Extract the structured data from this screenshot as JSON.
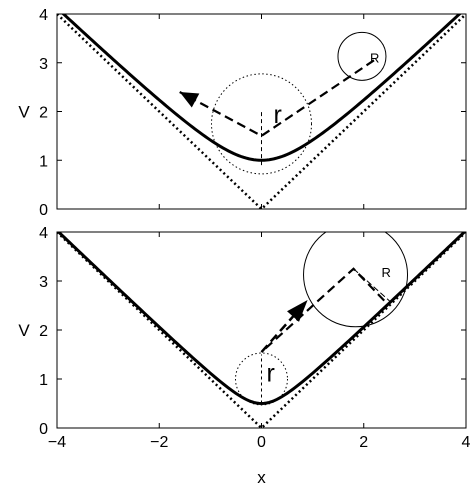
{
  "chart_data": [
    {
      "type": "line",
      "panel": "top",
      "xlim": [
        -4,
        4
      ],
      "ylim": [
        0,
        4
      ],
      "ylabel": "V",
      "xlabel": "",
      "x_ticks": [],
      "y_ticks": [
        "0",
        "1",
        "2",
        "3",
        "4"
      ],
      "series": [
        {
          "style": "solid",
          "equation": "V = sqrt(x^2 + 1)",
          "x": [
            -4,
            -3,
            -2,
            -1,
            0,
            1,
            2,
            3,
            4
          ],
          "values": [
            4.12,
            3.16,
            2.24,
            1.41,
            1.0,
            1.41,
            2.24,
            3.16,
            4.12
          ]
        },
        {
          "style": "dotted",
          "equation": "V = |x|",
          "x": [
            -4,
            0,
            4
          ],
          "values": [
            4,
            0,
            4
          ]
        },
        {
          "style": "dashed-path",
          "x": [
            2.2,
            0.0,
            -1.6
          ],
          "values": [
            3.05,
            1.5,
            2.4
          ]
        }
      ],
      "annotations": {
        "small_label": "r",
        "big_label": "R"
      }
    },
    {
      "type": "line",
      "panel": "bottom",
      "xlim": [
        -4,
        4
      ],
      "ylim": [
        0,
        4
      ],
      "ylabel": "V",
      "xlabel": "x",
      "x_ticks": [
        "−4",
        "−2",
        "0",
        "2",
        "4"
      ],
      "y_ticks": [
        "0",
        "1",
        "2",
        "3",
        "4"
      ],
      "series": [
        {
          "style": "solid",
          "equation": "V = sqrt(x^2 + 0.25)",
          "x": [
            -4,
            -3,
            -2,
            -1,
            0,
            1,
            2,
            3,
            4
          ],
          "values": [
            4.03,
            3.04,
            2.06,
            1.12,
            0.5,
            1.12,
            2.06,
            3.04,
            4.03
          ]
        },
        {
          "style": "dotted",
          "equation": "V = |x|",
          "x": [
            -4,
            0,
            4
          ],
          "values": [
            4,
            0,
            4
          ]
        },
        {
          "style": "dashed-path",
          "x": [
            2.4,
            1.8,
            0.0
          ],
          "values": [
            2.6,
            3.25,
            1.55
          ]
        },
        {
          "style": "dashed-arrow",
          "x": [
            0.0,
            0.85
          ],
          "values": [
            1.55,
            2.55
          ]
        }
      ],
      "annotations": {
        "small_label": "r",
        "big_label": "R"
      }
    }
  ]
}
